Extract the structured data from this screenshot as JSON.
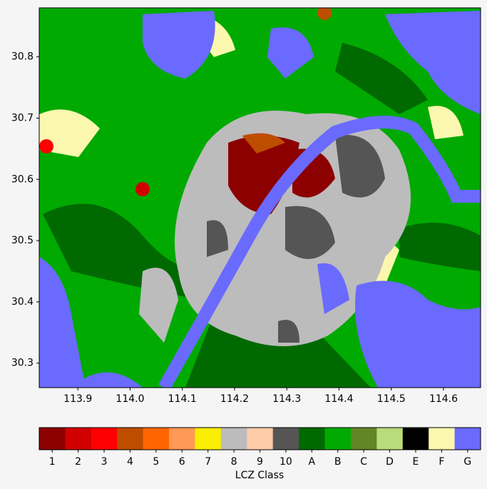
{
  "chart_data": {
    "type": "map",
    "xlim": [
      113.826,
      114.671
    ],
    "xticks": [
      113.9,
      {
        "value": 114,
        "label": "114.0"
      },
      114.1,
      114.2,
      114.3,
      114.4,
      114.5,
      114.6
    ],
    "ylim": [
      30.26,
      30.88
    ],
    "yticks": [
      30.3,
      30.4,
      30.5,
      30.6,
      30.7,
      30.8
    ],
    "colorbar": {
      "label": "LCZ Class",
      "classes": [
        "1",
        "2",
        "3",
        "4",
        "5",
        "6",
        "7",
        "8",
        "9",
        "10",
        "A",
        "B",
        "C",
        "D",
        "E",
        "F",
        "G"
      ],
      "colors": [
        "#8c0000",
        "#d10000",
        "#ff0000",
        "#bf4d00",
        "#ff6600",
        "#ff9955",
        "#faee05",
        "#bcbcbc",
        "#ffccaa",
        "#555555",
        "#006a00",
        "#00aa00",
        "#648525",
        "#b9db79",
        "#000000",
        "#fbf7ae",
        "#6a6aff"
      ]
    }
  }
}
